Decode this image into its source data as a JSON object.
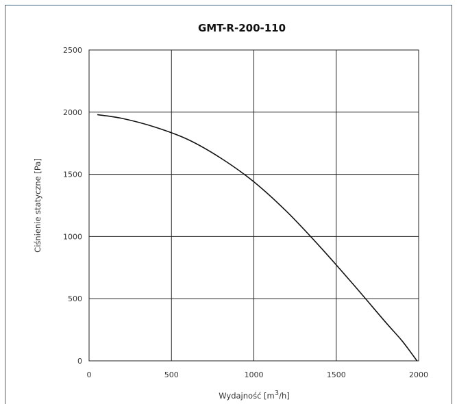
{
  "chart_data": {
    "type": "line",
    "title": "GMT-R-200-110",
    "xlabel": "Wydajność [m³/h]",
    "xlabel_base": "Wydajność [m",
    "xlabel_sup": "3",
    "xlabel_tail": "/h]",
    "ylabel": "Ciśnienie statyczne [Pa]",
    "xlim": [
      0,
      2000
    ],
    "ylim": [
      0,
      2500
    ],
    "xticks": [
      0,
      500,
      1000,
      1500,
      2000
    ],
    "yticks": [
      0,
      500,
      1000,
      1500,
      2000,
      2500
    ],
    "xtick_labels": [
      "0",
      "500",
      "1000",
      "1500",
      "2000"
    ],
    "ytick_labels": [
      "0",
      "500",
      "1000",
      "1500",
      "2000",
      "2500"
    ],
    "grid": true,
    "series": [
      {
        "x": [
          50,
          200,
          400,
          600,
          800,
          1000,
          1200,
          1400,
          1600,
          1800,
          1900,
          1990
        ],
        "y": [
          1980,
          1950,
          1880,
          1780,
          1630,
          1440,
          1200,
          920,
          620,
          310,
          160,
          0
        ]
      }
    ],
    "colors": {
      "line": "#111111",
      "grid": "#222222",
      "frame": "#3a5f7f"
    }
  }
}
